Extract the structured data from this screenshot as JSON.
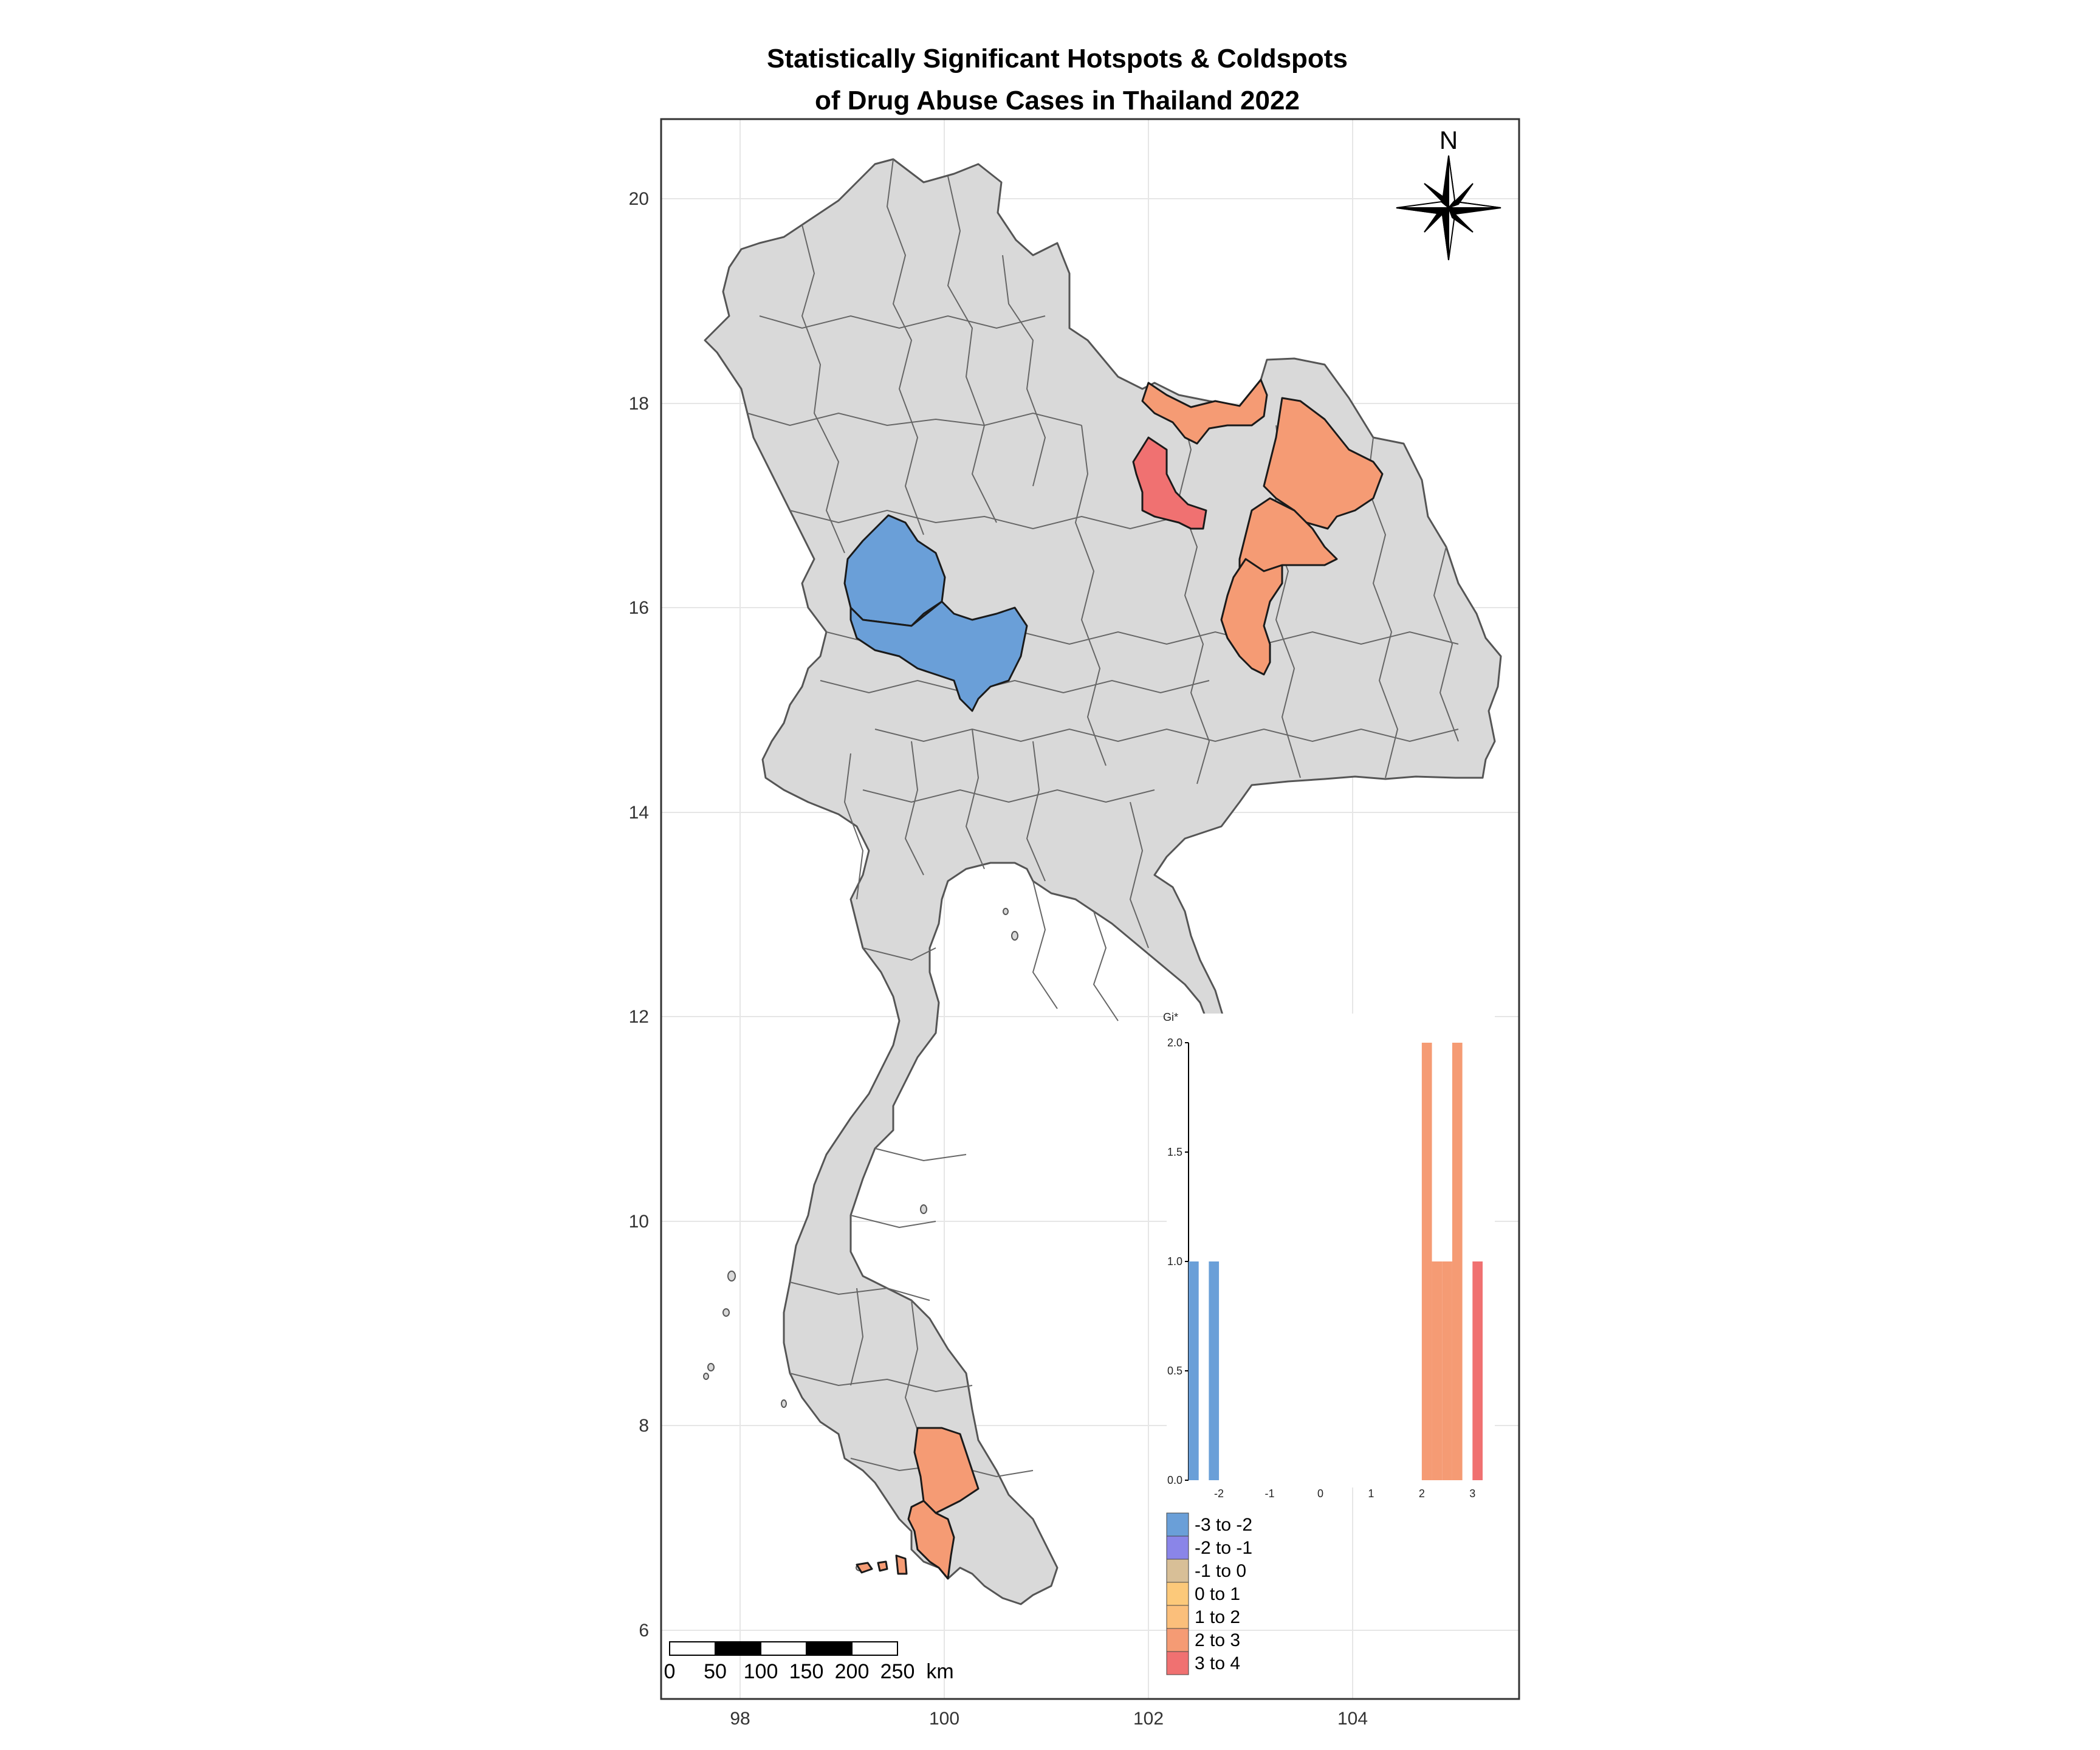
{
  "title": {
    "line1": "Statistically Significant Hotspots & Coldspots",
    "line2": "of Drug Abuse Cases in Thailand 2022"
  },
  "axes": {
    "y_ticks": [
      "20",
      "18",
      "16",
      "14",
      "12",
      "10",
      "8",
      "6"
    ],
    "x_ticks": [
      "98",
      "100",
      "102",
      "104"
    ]
  },
  "north_arrow": {
    "label": "N"
  },
  "scale_bar": {
    "labels": [
      "0",
      "50",
      "100",
      "150",
      "200",
      "250"
    ],
    "unit": "km"
  },
  "colors": {
    "land": "#d9d9d9",
    "boundary": "#555555",
    "cold_-3_-2": "#6a9fd8",
    "cat_-2_-1": "#8a85e8",
    "cat_-1_0": "#d8bf97",
    "cat_0_1": "#fcc97a",
    "cat_1_2": "#fbbf7b",
    "hot_2_3": "#f59b74",
    "hot_3_4": "#f07171"
  },
  "legend": {
    "items": [
      {
        "label": "-3 to -2",
        "color": "#6a9fd8"
      },
      {
        "label": "-2 to -1",
        "color": "#8a85e8"
      },
      {
        "label": "-1 to 0",
        "color": "#d8bf97"
      },
      {
        "label": "0 to 1",
        "color": "#fcc97a"
      },
      {
        "label": "1 to 2",
        "color": "#fbbf7b"
      },
      {
        "label": "2 to 3",
        "color": "#f59b74"
      },
      {
        "label": "3 to 4",
        "color": "#f07171"
      }
    ]
  },
  "chart_data": {
    "type": "bar",
    "title": "",
    "xlabel": "Gi*",
    "ylabel": "",
    "xlim": [
      -2.6,
      3.2
    ],
    "ylim": [
      0,
      2.0
    ],
    "x_ticks": [
      "-2",
      "-1",
      "0",
      "1",
      "2",
      "3"
    ],
    "y_ticks": [
      "0.0",
      "0.5",
      "1.0",
      "1.5",
      "2.0"
    ],
    "bars": [
      {
        "x0": -2.6,
        "x1": -2.4,
        "count": 1,
        "color": "#6a9fd8"
      },
      {
        "x0": -2.2,
        "x1": -2.0,
        "count": 1,
        "color": "#6a9fd8"
      },
      {
        "x0": 2.0,
        "x1": 2.2,
        "count": 2,
        "color": "#f59b74"
      },
      {
        "x0": 2.2,
        "x1": 2.4,
        "count": 1,
        "color": "#f59b74"
      },
      {
        "x0": 2.4,
        "x1": 2.6,
        "count": 1,
        "color": "#f59b74"
      },
      {
        "x0": 2.6,
        "x1": 2.8,
        "count": 2,
        "color": "#f59b74"
      },
      {
        "x0": 3.0,
        "x1": 3.2,
        "count": 1,
        "color": "#f07171"
      }
    ]
  }
}
